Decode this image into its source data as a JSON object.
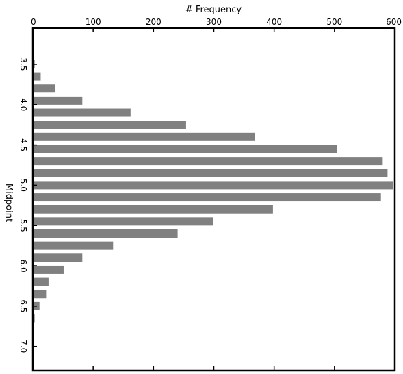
{
  "chart_data": {
    "type": "bar",
    "orientation": "horizontal",
    "xlabel": "# Frequency",
    "ylabel": "Midpoint",
    "xlim": [
      0,
      600
    ],
    "x_ticks": [
      0,
      100,
      200,
      300,
      400,
      500,
      600
    ],
    "x_tick_labels": [
      "0",
      "100",
      "200",
      "300",
      "400",
      "500",
      "600"
    ],
    "ylim": [
      3.05,
      7.3
    ],
    "y_ticks": [
      3.5,
      4.0,
      4.5,
      5.0,
      5.5,
      6.0,
      6.5,
      7.0
    ],
    "y_tick_labels": [
      "3.5",
      "4.0",
      "4.5",
      "5.0",
      "5.5",
      "6.0",
      "6.5",
      "7.0"
    ],
    "x_axis_position": "top",
    "grid": false,
    "bar_color": "#808080",
    "midpoints": [
      3.5,
      3.65,
      3.8,
      3.95,
      4.1,
      4.25,
      4.4,
      4.55,
      4.7,
      4.85,
      5.0,
      5.15,
      5.3,
      5.45,
      5.6,
      5.75,
      5.9,
      6.05,
      6.2,
      6.35,
      6.5,
      6.65,
      6.8,
      6.95,
      7.1
    ],
    "values": [
      3,
      13,
      37,
      82,
      162,
      254,
      368,
      504,
      580,
      588,
      597,
      577,
      398,
      299,
      240,
      133,
      82,
      51,
      26,
      22,
      11,
      3,
      2,
      2,
      2
    ]
  }
}
